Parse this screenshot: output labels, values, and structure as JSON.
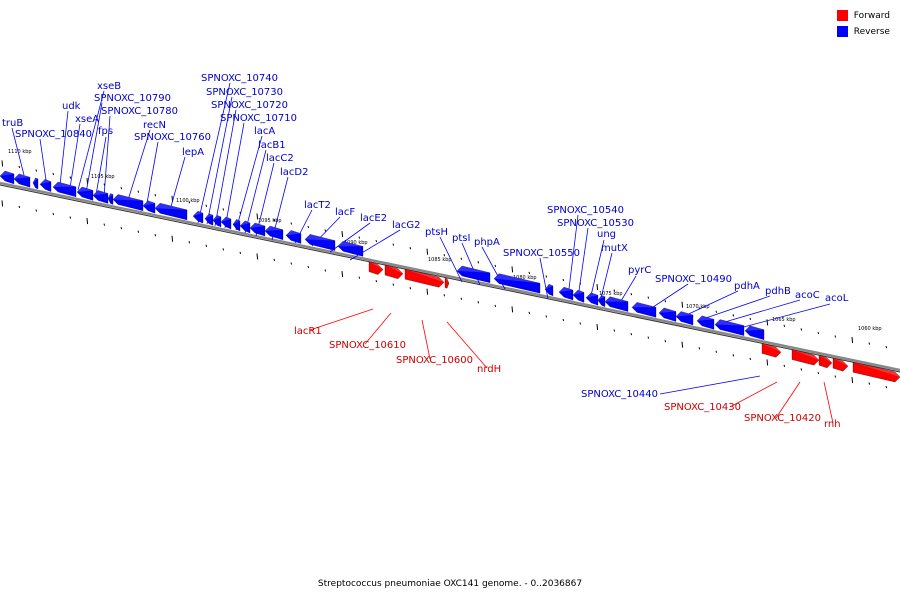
{
  "legend": {
    "forward_label": "Forward",
    "reverse_label": "Reverse",
    "forward_color": "#ff0000",
    "reverse_color": "#0000ff"
  },
  "caption": "Streptococcus pneumoniae OXC141 genome. - 0..2036867",
  "ruler_labels": [
    "1110 kbp",
    "1105 kbp",
    "1100 kbp",
    "1095 kbp",
    "1090 kbp",
    "1085 kbp",
    "1080 kbp",
    "1075 kbp",
    "1070 kbp",
    "1065 kbp",
    "1060 kbp"
  ],
  "genes": {
    "reverse": [
      "truB",
      "SPNOXC_10840",
      "udk",
      "xseA",
      "xseB",
      "SPNOXC_10790",
      "fps",
      "SPNOXC_10780",
      "recN",
      "SPNOXC_10760",
      "lepA",
      "SPNOXC_10740",
      "SPNOXC_10730",
      "SPNOXC_10720",
      "SPNOXC_10710",
      "lacA",
      "lacB1",
      "lacC2",
      "lacD2",
      "lacT2",
      "lacF",
      "lacE2",
      "lacG2",
      "ptsH",
      "ptsI",
      "phpA",
      "SPNOXC_10550",
      "SPNOXC_10540",
      "SPNOXC_10530",
      "ung",
      "mutX",
      "pyrC",
      "SPNOXC_10490",
      "pdhA",
      "pdhB",
      "acoC",
      "acoL",
      "SPNOXC_10440"
    ],
    "forward": [
      "lacR1",
      "SPNOXC_10610",
      "SPNOXC_10600",
      "nrdH",
      "SPNOXC_10430",
      "SPNOXC_10420",
      "rnh"
    ]
  }
}
